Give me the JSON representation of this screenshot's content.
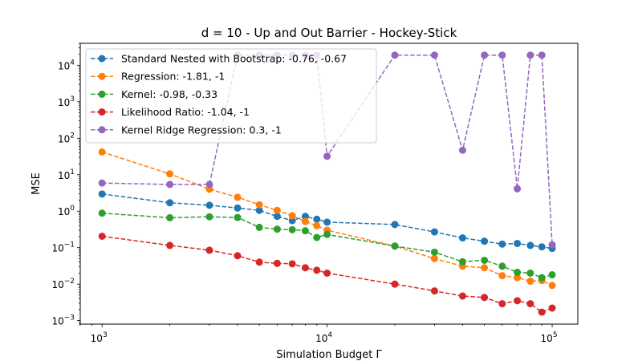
{
  "chart_data": {
    "type": "line",
    "title": "d = 10 - Up and Out Barrier - Hockey-Stick",
    "xlabel": "Simulation Budget Γ",
    "ylabel": "MSE",
    "xscale": "log",
    "yscale": "log",
    "xlim": [
      800,
      130000
    ],
    "ylim": [
      0.0008,
      40000
    ],
    "x_tick_values": [
      1000,
      10000,
      100000
    ],
    "x_tick_labels": [
      [
        "10",
        "3"
      ],
      [
        "10",
        "4"
      ],
      [
        "10",
        "5"
      ]
    ],
    "y_tick_values": [
      0.001,
      0.01,
      0.1,
      1,
      10,
      100,
      1000,
      10000
    ],
    "y_tick_labels": [
      [
        "10",
        "−3"
      ],
      [
        "10",
        "−2"
      ],
      [
        "10",
        "−1"
      ],
      [
        "10",
        "0"
      ],
      [
        "10",
        "1"
      ],
      [
        "10",
        "2"
      ],
      [
        "10",
        "3"
      ],
      [
        "10",
        "4"
      ]
    ],
    "grid": false,
    "legend_position": "top-left",
    "x": [
      1000,
      2000,
      3000,
      4000,
      5000,
      6000,
      7000,
      8000,
      9000,
      10000,
      20000,
      30000,
      40000,
      50000,
      60000,
      70000,
      80000,
      90000,
      100000
    ],
    "series": [
      {
        "name": "Standard Nested with Bootstrap: -0.76, -0.67",
        "color": "#1f77b4",
        "values": [
          2.95,
          1.7,
          1.45,
          1.22,
          1.05,
          0.72,
          0.55,
          0.72,
          0.6,
          0.5,
          0.43,
          0.27,
          0.185,
          0.15,
          0.125,
          0.13,
          0.115,
          0.105,
          0.095
        ]
      },
      {
        "name": "Regression: -1.81, -1",
        "color": "#ff7f0e",
        "values": [
          42,
          10.5,
          4.0,
          2.4,
          1.5,
          1.05,
          0.75,
          0.52,
          0.4,
          0.3,
          0.11,
          0.05,
          0.031,
          0.028,
          0.017,
          0.015,
          0.012,
          0.0125,
          0.0092
        ]
      },
      {
        "name": "Kernel: -0.98, -0.33",
        "color": "#2ca02c",
        "values": [
          0.88,
          0.66,
          0.7,
          0.67,
          0.36,
          0.32,
          0.31,
          0.29,
          0.19,
          0.23,
          0.11,
          0.075,
          0.041,
          0.045,
          0.031,
          0.021,
          0.02,
          0.015,
          0.018
        ]
      },
      {
        "name": "Likelihood Ratio: -1.04, -1",
        "color": "#d62728",
        "values": [
          0.205,
          0.115,
          0.085,
          0.06,
          0.04,
          0.037,
          0.036,
          0.028,
          0.024,
          0.02,
          0.01,
          0.0065,
          0.0047,
          0.0043,
          0.0029,
          0.0035,
          0.0029,
          0.0017,
          0.0022
        ]
      },
      {
        "name": "Kernel Ridge Regression: 0.3, -1",
        "color": "#9467bd",
        "values": [
          5.9,
          5.4,
          5.4,
          19000,
          19000,
          19000,
          19000,
          19000,
          19000,
          32,
          19000,
          19000,
          47,
          19000,
          19000,
          4.1,
          19000,
          19000,
          0.12
        ]
      }
    ]
  }
}
